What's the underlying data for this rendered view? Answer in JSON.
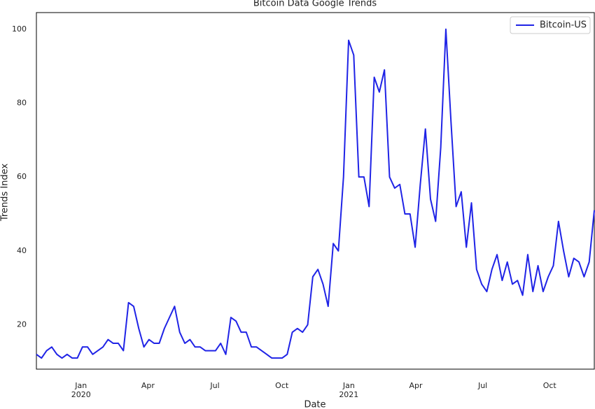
{
  "chart_data": {
    "type": "line",
    "title": "Bitcoin Data Google Trends",
    "xlabel": "Date",
    "ylabel": "Trends Index",
    "xlim": [
      "2019-11",
      "2021-12"
    ],
    "xticks": [
      {
        "value": "2020-01",
        "label": "Jan\n2020"
      },
      {
        "value": "2020-04",
        "label": "Apr"
      },
      {
        "value": "2020-07",
        "label": "Jul"
      },
      {
        "value": "2020-10",
        "label": "Oct"
      },
      {
        "value": "2021-01",
        "label": "Jan\n2021"
      },
      {
        "value": "2021-04",
        "label": "Apr"
      },
      {
        "value": "2021-07",
        "label": "Jul"
      },
      {
        "value": "2021-10",
        "label": "Oct"
      }
    ],
    "ylim": [
      8,
      104.5
    ],
    "yticks": [
      20,
      40,
      60,
      80,
      100
    ],
    "grid": false,
    "legend": "upper right",
    "series": [
      {
        "name": "Bitcoin-US",
        "color": "#1f23e6",
        "values": [
          12,
          11,
          13,
          14,
          12,
          11,
          12,
          11,
          11,
          14,
          14,
          12,
          13,
          14,
          16,
          15,
          15,
          13,
          26,
          25,
          19,
          14,
          16,
          15,
          15,
          19,
          22,
          25,
          18,
          15,
          16,
          14,
          14,
          13,
          13,
          13,
          15,
          12,
          22,
          21,
          18,
          18,
          14,
          14,
          13,
          12,
          11,
          11,
          11,
          12,
          18,
          19,
          18,
          20,
          33,
          35,
          31,
          25,
          42,
          40,
          60,
          97,
          93,
          60,
          60,
          52,
          87,
          83,
          89,
          60,
          57,
          58,
          50,
          50,
          41,
          58,
          73,
          54,
          48,
          68,
          100,
          75,
          52,
          56,
          41,
          53,
          35,
          31,
          29,
          35,
          39,
          32,
          37,
          31,
          32,
          28,
          39,
          29,
          36,
          29,
          33,
          36,
          48,
          40,
          33,
          38,
          37,
          33,
          37,
          51
        ]
      }
    ]
  }
}
